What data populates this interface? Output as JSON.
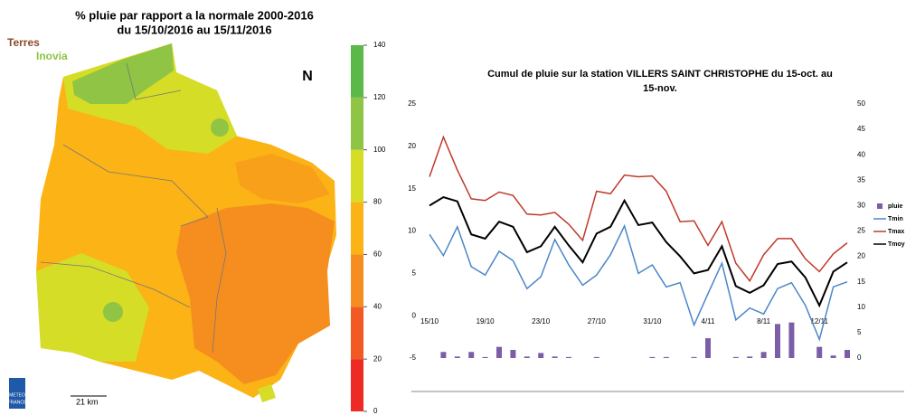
{
  "map": {
    "title": [
      "% pluie par rapport a la normale 2000-2016",
      "du 15/10/2016 au 15/11/2016"
    ],
    "colorbar": {
      "ticks": [
        0,
        20,
        40,
        60,
        80,
        100,
        120,
        140
      ],
      "colors": [
        "#ee2a24",
        "#f15a22",
        "#f58e1f",
        "#fbb316",
        "#d6dd26",
        "#8fc444",
        "#5cb848"
      ]
    },
    "scale_label": "21 km",
    "logo": [
      "Terres",
      "Inovia"
    ],
    "credit": [
      "METEO",
      "FRANCE"
    ],
    "north": "N"
  },
  "chart_data": {
    "type": "line",
    "title": "Cumul de pluie sur la station VILLERS SAINT CHRISTOPHE du 15-oct. au 15-nov.",
    "categories": [
      "15/10",
      null,
      null,
      null,
      "19/10",
      null,
      null,
      null,
      "23/10",
      null,
      null,
      null,
      "27/10",
      null,
      null,
      null,
      "31/10",
      null,
      null,
      null,
      "4/11",
      null,
      null,
      null,
      "8/11",
      null,
      null,
      null,
      "12/11",
      null,
      null
    ],
    "ylim": [
      -5,
      25
    ],
    "yticks": [
      -5,
      0,
      5,
      10,
      15,
      20,
      25
    ],
    "y2lim": [
      0,
      50
    ],
    "y2ticks": [
      0,
      5,
      10,
      15,
      20,
      25,
      30,
      35,
      40,
      45,
      50
    ],
    "series": [
      {
        "name": "pluie",
        "type": "bar",
        "axis": "y2",
        "color": "#7b5ea7",
        "values": [
          0,
          1.2,
          0.3,
          1.2,
          0.2,
          2.2,
          1.6,
          0.3,
          1.0,
          0.3,
          0.2,
          0,
          0.2,
          0,
          0,
          0,
          0.2,
          0.2,
          0,
          0.2,
          3.9,
          0,
          0.2,
          0.3,
          1.2,
          6.7,
          7.0,
          0,
          2.2,
          0.5,
          1.6
        ]
      },
      {
        "name": "Tmin",
        "color": "#4a86c8",
        "values": [
          9.6,
          7.1,
          10.5,
          5.8,
          4.8,
          7.6,
          6.5,
          3.2,
          4.6,
          9.0,
          6.0,
          3.6,
          4.8,
          7.2,
          10.6,
          5.0,
          6.0,
          3.4,
          3.9,
          -1.1,
          2.6,
          6.2,
          -0.5,
          0.9,
          0.2,
          3.2,
          3.9,
          1.2,
          -2.8,
          3.4,
          4.0
        ]
      },
      {
        "name": "Tmax",
        "color": "#c0392b",
        "values": [
          16.4,
          21.1,
          17.2,
          13.8,
          13.6,
          14.6,
          14.2,
          12.0,
          11.9,
          12.2,
          10.8,
          8.9,
          14.7,
          14.4,
          16.6,
          16.4,
          16.5,
          14.7,
          11.1,
          11.2,
          8.3,
          11.1,
          6.2,
          4.1,
          7.2,
          9.1,
          9.1,
          6.7,
          5.2,
          7.3,
          8.6
        ]
      },
      {
        "name": "Tmoy",
        "color": "#000000",
        "values": [
          13.0,
          14.0,
          13.5,
          9.6,
          9.1,
          11.1,
          10.5,
          7.5,
          8.2,
          10.5,
          8.3,
          6.3,
          9.7,
          10.5,
          13.6,
          10.7,
          11.0,
          8.7,
          7.0,
          5.0,
          5.4,
          8.2,
          3.5,
          2.7,
          3.6,
          6.1,
          6.4,
          4.5,
          1.2,
          5.2,
          6.3
        ]
      }
    ]
  }
}
